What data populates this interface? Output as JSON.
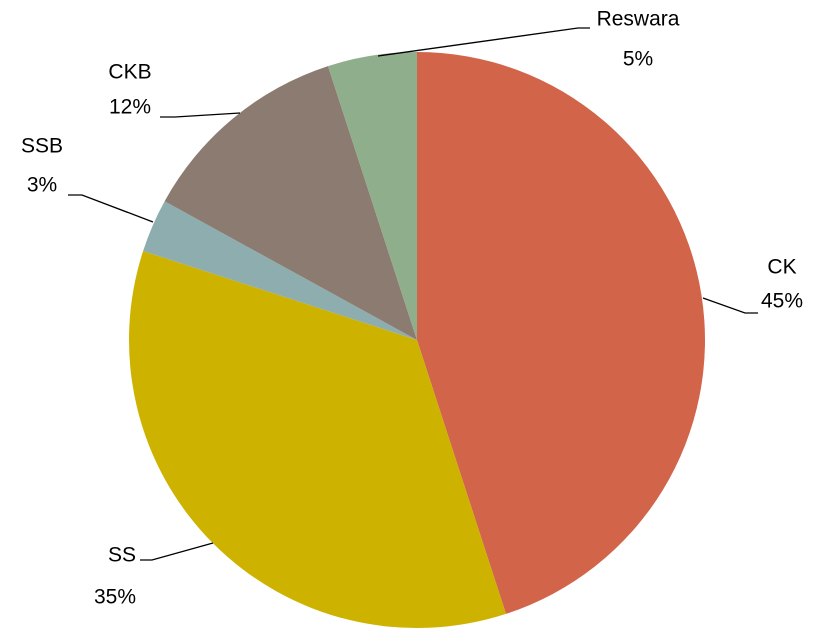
{
  "chart_data": {
    "type": "pie",
    "categories": [
      "CK",
      "SS",
      "SSB",
      "CKB",
      "Reswara"
    ],
    "values": [
      45,
      35,
      3,
      12,
      5
    ],
    "value_labels": [
      "45%",
      "35%",
      "3%",
      "12%",
      "5%"
    ],
    "colors": [
      "#d2644a",
      "#cdb200",
      "#8eadaf",
      "#8c7b70",
      "#8fae8c"
    ]
  }
}
